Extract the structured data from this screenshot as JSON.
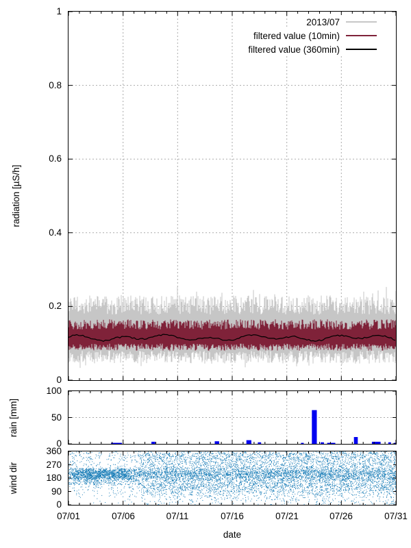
{
  "xaxis": {
    "label": "date",
    "tick_labels": [
      "07/01",
      "07/06",
      "07/11",
      "07/16",
      "07/21",
      "07/26",
      "07/31"
    ],
    "tick_days": [
      0,
      5,
      10,
      15,
      20,
      25,
      30
    ],
    "minor_tick_every_days": 1,
    "range_days": [
      0,
      30
    ],
    "grid_days": [
      5,
      10,
      15,
      20,
      25
    ]
  },
  "legend": {
    "items": [
      {
        "label": "2013/07",
        "color": "#c6c6c6"
      },
      {
        "label": "filtered value (10min)",
        "color": "#7f2239"
      },
      {
        "label": "filtered value (360min)",
        "color": "#000000"
      }
    ]
  },
  "panels": {
    "radiation": {
      "ylabel": "radiation [µS/h]",
      "ylim": [
        0,
        1
      ],
      "yticks": [
        {
          "v": 0,
          "label": "0"
        },
        {
          "v": 0.2,
          "label": "0.2"
        },
        {
          "v": 0.4,
          "label": "0.4"
        },
        {
          "v": 0.6,
          "label": "0.6"
        },
        {
          "v": 0.8,
          "label": "0.8"
        },
        {
          "v": 1,
          "label": "1"
        }
      ],
      "grid_y": [
        0.2,
        0.4,
        0.6,
        0.8
      ]
    },
    "rain": {
      "ylabel": "rain [mm]",
      "ylim": [
        0,
        100
      ],
      "yticks": [
        {
          "v": 0,
          "label": "0"
        },
        {
          "v": 50,
          "label": "50"
        },
        {
          "v": 100,
          "label": "100"
        }
      ],
      "grid_y": [
        50
      ]
    },
    "wind": {
      "ylabel": "wind dir",
      "ylim": [
        0,
        360
      ],
      "yticks": [
        {
          "v": 0,
          "label": "0"
        },
        {
          "v": 90,
          "label": "90"
        },
        {
          "v": 180,
          "label": "180"
        },
        {
          "v": 270,
          "label": "270"
        },
        {
          "v": 360,
          "label": "360"
        }
      ],
      "grid_y": []
    }
  },
  "grid_color": "#aaaaaa",
  "chart_data": [
    {
      "type": "line",
      "title": "radiation [µS/h], July 2013",
      "xlabel": "date",
      "ylabel": "radiation [µS/h]",
      "ylim": [
        0,
        1
      ],
      "x_range": [
        "07/01",
        "07/31"
      ],
      "legend_position": "top-right",
      "grid": true,
      "series": [
        {
          "name": "2013/07",
          "style": "raw noisy trace (dense band)",
          "color": "#c6c6c6",
          "mean": 0.115,
          "typical_min": 0.045,
          "typical_max": 0.23,
          "extreme_min": 0.03,
          "extreme_max": 0.25
        },
        {
          "name": "filtered value (10min)",
          "style": "noisy band",
          "color": "#7f2239",
          "mean": 0.115,
          "typical_min": 0.08,
          "typical_max": 0.165
        },
        {
          "name": "filtered value (360min)",
          "style": "smooth line",
          "color": "#000000",
          "mean": 0.115,
          "typical_min": 0.108,
          "typical_max": 0.122
        }
      ]
    },
    {
      "type": "bar",
      "title": "rain [mm]",
      "ylim": [
        0,
        100
      ],
      "color": "#0000f0",
      "bars": [
        {
          "date": "07/05",
          "day": 3.9,
          "span_days": 1.0,
          "mm": 2
        },
        {
          "date": "07/08",
          "day": 7.6,
          "span_days": 0.35,
          "mm": 4
        },
        {
          "date": "07/14",
          "day": 13.4,
          "span_days": 0.4,
          "mm": 5
        },
        {
          "date": "07/17",
          "day": 16.3,
          "span_days": 0.45,
          "mm": 7
        },
        {
          "date": "07/18",
          "day": 17.35,
          "span_days": 0.3,
          "mm": 3
        },
        {
          "date": "07/22",
          "day": 21.3,
          "span_days": 0.25,
          "mm": 2
        },
        {
          "date": "07/23",
          "day": 22.3,
          "span_days": 0.45,
          "mm": 64
        },
        {
          "date": "07/24",
          "day": 23.1,
          "span_days": 0.3,
          "mm": 3
        },
        {
          "date": "07/25",
          "day": 23.7,
          "span_days": 0.75,
          "mm": 2
        },
        {
          "date": "07/27",
          "day": 26.15,
          "span_days": 0.35,
          "mm": 13
        },
        {
          "date": "07/29",
          "day": 27.8,
          "span_days": 0.8,
          "mm": 4
        },
        {
          "date": "07/30",
          "day": 29.3,
          "span_days": 0.25,
          "mm": 3
        },
        {
          "date": "07/31",
          "day": 29.8,
          "span_days": 0.2,
          "mm": 2
        }
      ]
    },
    {
      "type": "scatter",
      "title": "wind dir",
      "ylim": [
        0,
        360
      ],
      "color": "#1b7eb8",
      "description": "dense 1px-dot scatter over whole month; dominant band 170-240 deg (solid during 07/01-07/06), secondary band 90-170, sparser above 250 and below 130 early in the month",
      "bands": [
        {
          "center": 205,
          "sd": 25,
          "weight": 0.36
        },
        {
          "center": 120,
          "sd": 35,
          "weight": 0.22
        },
        {
          "center": 270,
          "sd": 40,
          "weight": 0.15
        },
        {
          "center": 330,
          "sd": 22,
          "weight": 0.1
        },
        {
          "uniform": [
            0,
            360
          ],
          "weight": 0.17
        }
      ]
    }
  ]
}
